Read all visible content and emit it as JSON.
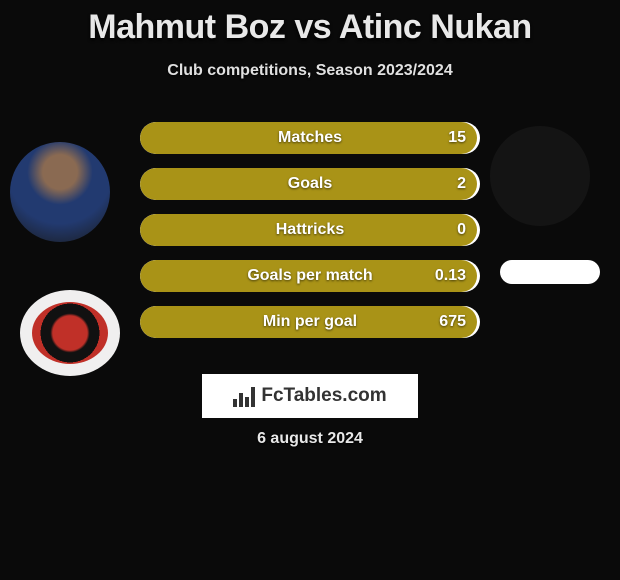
{
  "title": "Mahmut Boz vs Atinc Nukan",
  "subtitle": "Club competitions, Season 2023/2024",
  "date": "6 august 2024",
  "logo_text": "FcTables.com",
  "colors": {
    "bar_fill": "#a99317",
    "bar_bg": "#ffffff",
    "text": "#ffffff",
    "page_bg": "#0a0a0a"
  },
  "stats": [
    {
      "label": "Matches",
      "value": "15",
      "width_pct": 99
    },
    {
      "label": "Goals",
      "value": "2",
      "width_pct": 99
    },
    {
      "label": "Hattricks",
      "value": "0",
      "width_pct": 99
    },
    {
      "label": "Goals per match",
      "value": "0.13",
      "width_pct": 99
    },
    {
      "label": "Min per goal",
      "value": "675",
      "width_pct": 99
    }
  ]
}
